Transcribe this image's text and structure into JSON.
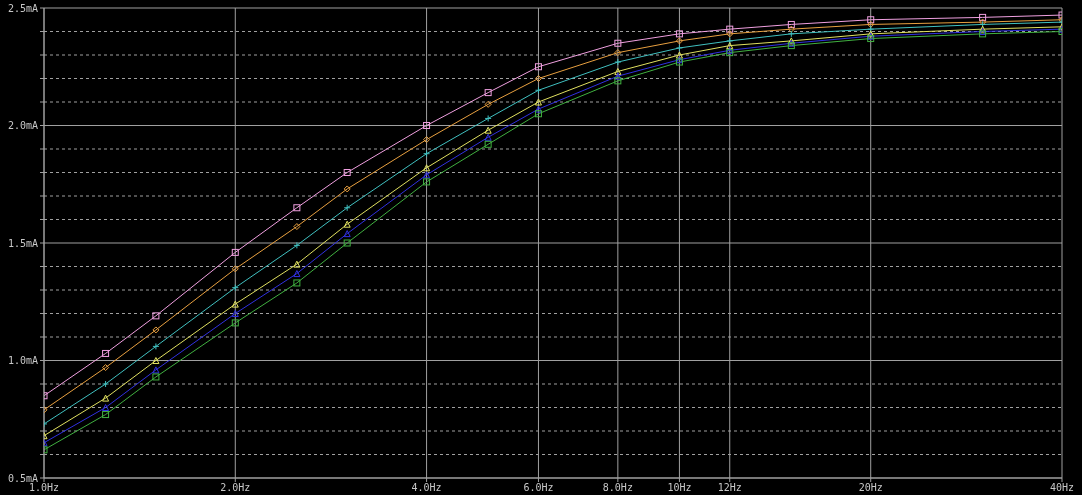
{
  "chart_data": {
    "type": "line",
    "x": [
      1,
      1.25,
      1.5,
      2,
      2.5,
      3,
      4,
      5,
      6,
      8,
      10,
      12,
      15,
      20,
      30,
      40
    ],
    "series": [
      {
        "color": "#f0a0e0",
        "marker": "square",
        "values": [
          0.85,
          1.03,
          1.19,
          1.46,
          1.65,
          1.8,
          2.0,
          2.14,
          2.25,
          2.35,
          2.39,
          2.41,
          2.43,
          2.45,
          2.46,
          2.47
        ]
      },
      {
        "color": "#e8a040",
        "marker": "diamond",
        "values": [
          0.79,
          0.97,
          1.13,
          1.39,
          1.57,
          1.73,
          1.94,
          2.09,
          2.2,
          2.31,
          2.36,
          2.39,
          2.41,
          2.43,
          2.44,
          2.45
        ]
      },
      {
        "color": "#40c0c0",
        "marker": "cross",
        "values": [
          0.73,
          0.9,
          1.06,
          1.31,
          1.49,
          1.65,
          1.88,
          2.03,
          2.15,
          2.27,
          2.33,
          2.36,
          2.39,
          2.41,
          2.43,
          2.44
        ]
      },
      {
        "color": "#e0e060",
        "marker": "triangle",
        "values": [
          0.68,
          0.84,
          1.0,
          1.24,
          1.41,
          1.58,
          1.82,
          1.98,
          2.1,
          2.23,
          2.3,
          2.34,
          2.36,
          2.39,
          2.41,
          2.42
        ]
      },
      {
        "color": "#3030e0",
        "marker": "triangle",
        "values": [
          0.65,
          0.8,
          0.96,
          1.2,
          1.37,
          1.54,
          1.79,
          1.95,
          2.07,
          2.21,
          2.28,
          2.32,
          2.35,
          2.38,
          2.4,
          2.41
        ]
      },
      {
        "color": "#40b040",
        "marker": "square",
        "values": [
          0.62,
          0.77,
          0.93,
          1.16,
          1.33,
          1.5,
          1.76,
          1.92,
          2.05,
          2.19,
          2.27,
          2.31,
          2.34,
          2.37,
          2.39,
          2.4
        ]
      }
    ],
    "log": "x",
    "xlim": [
      1,
      40
    ],
    "xticks": [
      {
        "value": 1,
        "label": "1.0Hz"
      },
      {
        "value": 2,
        "label": "2.0Hz"
      },
      {
        "value": 4,
        "label": "4.0Hz"
      },
      {
        "value": 6,
        "label": "6.0Hz"
      },
      {
        "value": 8,
        "label": "8.0Hz"
      },
      {
        "value": 10,
        "label": "10Hz"
      },
      {
        "value": 12,
        "label": "12Hz"
      },
      {
        "value": 20,
        "label": "20Hz"
      },
      {
        "value": 40,
        "label": "40Hz"
      }
    ],
    "ylim": [
      0.5,
      2.5
    ],
    "yticks": [
      {
        "value": 0.5,
        "label": "0.5mA"
      },
      {
        "value": 0.6,
        "label": null
      },
      {
        "value": 0.7,
        "label": null
      },
      {
        "value": 0.8,
        "label": null
      },
      {
        "value": 0.9,
        "label": null
      },
      {
        "value": 1,
        "label": "1.0mA"
      },
      {
        "value": 1.1,
        "label": null
      },
      {
        "value": 1.2,
        "label": null
      },
      {
        "value": 1.3,
        "label": null
      },
      {
        "value": 1.4,
        "label": null
      },
      {
        "value": 1.5,
        "label": "1.5mA"
      },
      {
        "value": 1.6,
        "label": null
      },
      {
        "value": 1.7,
        "label": null
      },
      {
        "value": 1.8,
        "label": null
      },
      {
        "value": 1.9,
        "label": null
      },
      {
        "value": 2,
        "label": "2.0mA"
      },
      {
        "value": 2.1,
        "label": null
      },
      {
        "value": 2.2,
        "label": null
      },
      {
        "value": 2.3,
        "label": null
      },
      {
        "value": 2.4,
        "label": null
      },
      {
        "value": 2.5,
        "label": "2.5mA"
      }
    ],
    "grid": true
  }
}
